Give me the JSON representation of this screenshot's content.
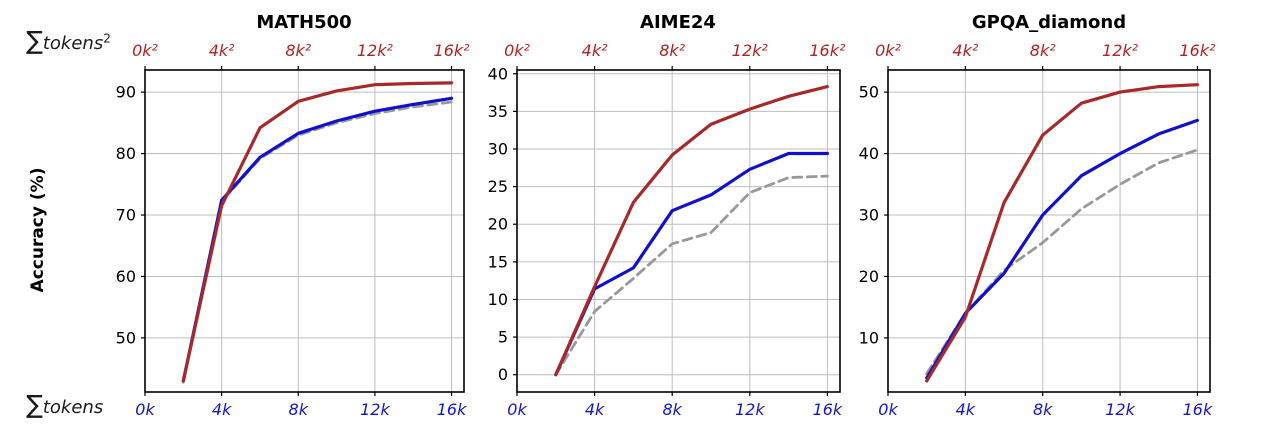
{
  "figure": {
    "top_axis": {
      "sigma": "∑",
      "word": "tokens",
      "sup": "2"
    },
    "bottom_axis": {
      "sigma": "∑",
      "word": "tokens"
    },
    "ylabel": "Accuracy (%)",
    "colors": {
      "line_red": "#A62A2A",
      "line_blue": "#1111CB",
      "line_gray": "#999999",
      "label_red": "#B22222",
      "label_blue": "#1515CD",
      "label_black": "#000000",
      "grid": "#BDBDBD",
      "spine": "#000000"
    }
  },
  "chart_data": [
    {
      "type": "line",
      "title": "MATH500",
      "xlabel_top": "∑tokens²",
      "xlabel_bottom": "∑tokens",
      "ylabel": "Accuracy (%)",
      "x": [
        2,
        4,
        6,
        8,
        10,
        12,
        14,
        16
      ],
      "xlim": [
        0,
        16.65
      ],
      "ylim": [
        41.2,
        93.6
      ],
      "xticks": [
        0,
        4,
        8,
        12,
        16
      ],
      "xtick_labels_top": [
        "0k²",
        "4k²",
        "8k²",
        "12k²",
        "16k²"
      ],
      "xtick_labels_bottom": [
        "0k",
        "4k",
        "8k",
        "12k",
        "16k"
      ],
      "yticks": [
        50,
        60,
        70,
        80,
        90
      ],
      "grid": true,
      "legend": "none",
      "series": [
        {
          "name": "gray-dashed",
          "dash": "dashed",
          "color": "#999999",
          "width": 2.8,
          "values": [
            42.8,
            72.2,
            79.2,
            83.0,
            85.0,
            86.5,
            87.6,
            88.4
          ]
        },
        {
          "name": "blue-solid",
          "dash": "solid",
          "color": "#1111CB",
          "width": 3.2,
          "values": [
            43.0,
            72.4,
            79.4,
            83.3,
            85.3,
            86.9,
            88.0,
            89.0
          ]
        },
        {
          "name": "red-solid",
          "dash": "solid",
          "color": "#A62A2A",
          "width": 3.2,
          "values": [
            43.0,
            71.5,
            84.2,
            88.5,
            90.2,
            91.2,
            91.4,
            91.5
          ]
        }
      ]
    },
    {
      "type": "line",
      "title": "AIME24",
      "xlabel_top": "∑tokens²",
      "xlabel_bottom": "∑tokens",
      "x": [
        2,
        4,
        6,
        8,
        10,
        12,
        14,
        16
      ],
      "xlim": [
        0,
        16.65
      ],
      "ylim": [
        -2.3,
        40.5
      ],
      "xticks": [
        0,
        4,
        8,
        12,
        16
      ],
      "xtick_labels_top": [
        "0k²",
        "4k²",
        "8k²",
        "12k²",
        "16k²"
      ],
      "xtick_labels_bottom": [
        "0k",
        "4k",
        "8k",
        "12k",
        "16k"
      ],
      "yticks": [
        0,
        5,
        10,
        15,
        20,
        25,
        30,
        35,
        40
      ],
      "grid": true,
      "legend": "none",
      "series": [
        {
          "name": "gray-dashed",
          "dash": "dashed",
          "color": "#999999",
          "width": 2.8,
          "values": [
            0.0,
            8.4,
            12.8,
            17.4,
            18.9,
            24.2,
            26.2,
            26.4
          ]
        },
        {
          "name": "blue-solid",
          "dash": "solid",
          "color": "#1111CB",
          "width": 3.2,
          "values": [
            0.0,
            11.4,
            14.2,
            21.8,
            23.9,
            27.3,
            29.4,
            29.4
          ]
        },
        {
          "name": "red-solid",
          "dash": "solid",
          "color": "#A62A2A",
          "width": 3.2,
          "values": [
            0.0,
            11.7,
            22.9,
            29.2,
            33.3,
            35.3,
            37.0,
            38.3
          ]
        }
      ]
    },
    {
      "type": "line",
      "title": "GPQA_diamond",
      "xlabel_top": "∑tokens²",
      "xlabel_bottom": "∑tokens",
      "x": [
        2,
        4,
        6,
        8,
        10,
        12,
        14,
        16
      ],
      "xlim": [
        0,
        16.65
      ],
      "ylim": [
        1.2,
        53.6
      ],
      "xticks": [
        0,
        4,
        8,
        12,
        16
      ],
      "xtick_labels_top": [
        "0k²",
        "4k²",
        "8k²",
        "12k²",
        "16k²"
      ],
      "xtick_labels_bottom": [
        "0k",
        "4k",
        "8k",
        "12k",
        "16k"
      ],
      "yticks": [
        10,
        20,
        30,
        40,
        50
      ],
      "grid": true,
      "legend": "none",
      "series": [
        {
          "name": "gray-dashed",
          "dash": "dashed",
          "color": "#999999",
          "width": 2.8,
          "values": [
            4.2,
            14.0,
            21.0,
            25.5,
            31.0,
            35.0,
            38.5,
            40.6
          ]
        },
        {
          "name": "blue-solid",
          "dash": "solid",
          "color": "#1111CB",
          "width": 3.2,
          "values": [
            3.5,
            14.0,
            20.5,
            30.0,
            36.4,
            40.0,
            43.2,
            45.4
          ]
        },
        {
          "name": "red-solid",
          "dash": "solid",
          "color": "#A62A2A",
          "width": 3.2,
          "values": [
            3.0,
            13.4,
            32.0,
            43.0,
            48.2,
            50.0,
            50.9,
            51.2
          ]
        }
      ]
    }
  ]
}
